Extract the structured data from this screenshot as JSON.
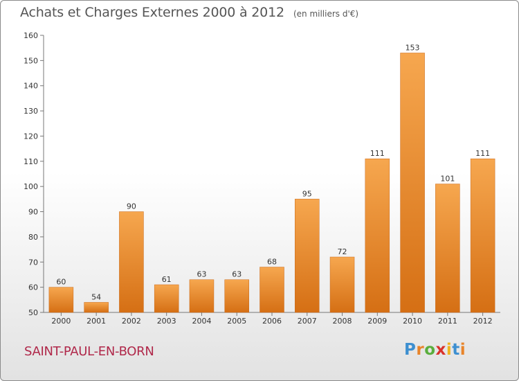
{
  "header": {
    "title": "Achats et Charges Externes 2000 à 2012",
    "unit": "(en milliers d'€)"
  },
  "footer": {
    "commune": "SAINT-PAUL-EN-BORN",
    "logo_letters": [
      "P",
      "r",
      "o",
      "x",
      "i",
      "t",
      "i"
    ]
  },
  "colors": {
    "bar_top": "#f6a74f",
    "bar_bottom": "#d56f14",
    "commune_text": "#b0284a",
    "logo": [
      "#3d8fd0",
      "#e8842a",
      "#5aae3d",
      "#d9312a",
      "#f0b31e",
      "#3d8fd0",
      "#e8842a"
    ]
  },
  "chart_data": {
    "type": "bar",
    "title": "Achats et Charges Externes 2000 à 2012",
    "subtitle": "(en milliers d'€)",
    "categories": [
      "2000",
      "2001",
      "2002",
      "2003",
      "2004",
      "2005",
      "2006",
      "2007",
      "2008",
      "2009",
      "2010",
      "2011",
      "2012"
    ],
    "values": [
      60,
      54,
      90,
      61,
      63,
      63,
      68,
      95,
      72,
      111,
      153,
      101,
      111
    ],
    "ylim": [
      50,
      160
    ],
    "yticks": [
      50,
      60,
      70,
      80,
      90,
      100,
      110,
      120,
      130,
      140,
      150,
      160
    ],
    "grid": false,
    "data_labels": true
  }
}
